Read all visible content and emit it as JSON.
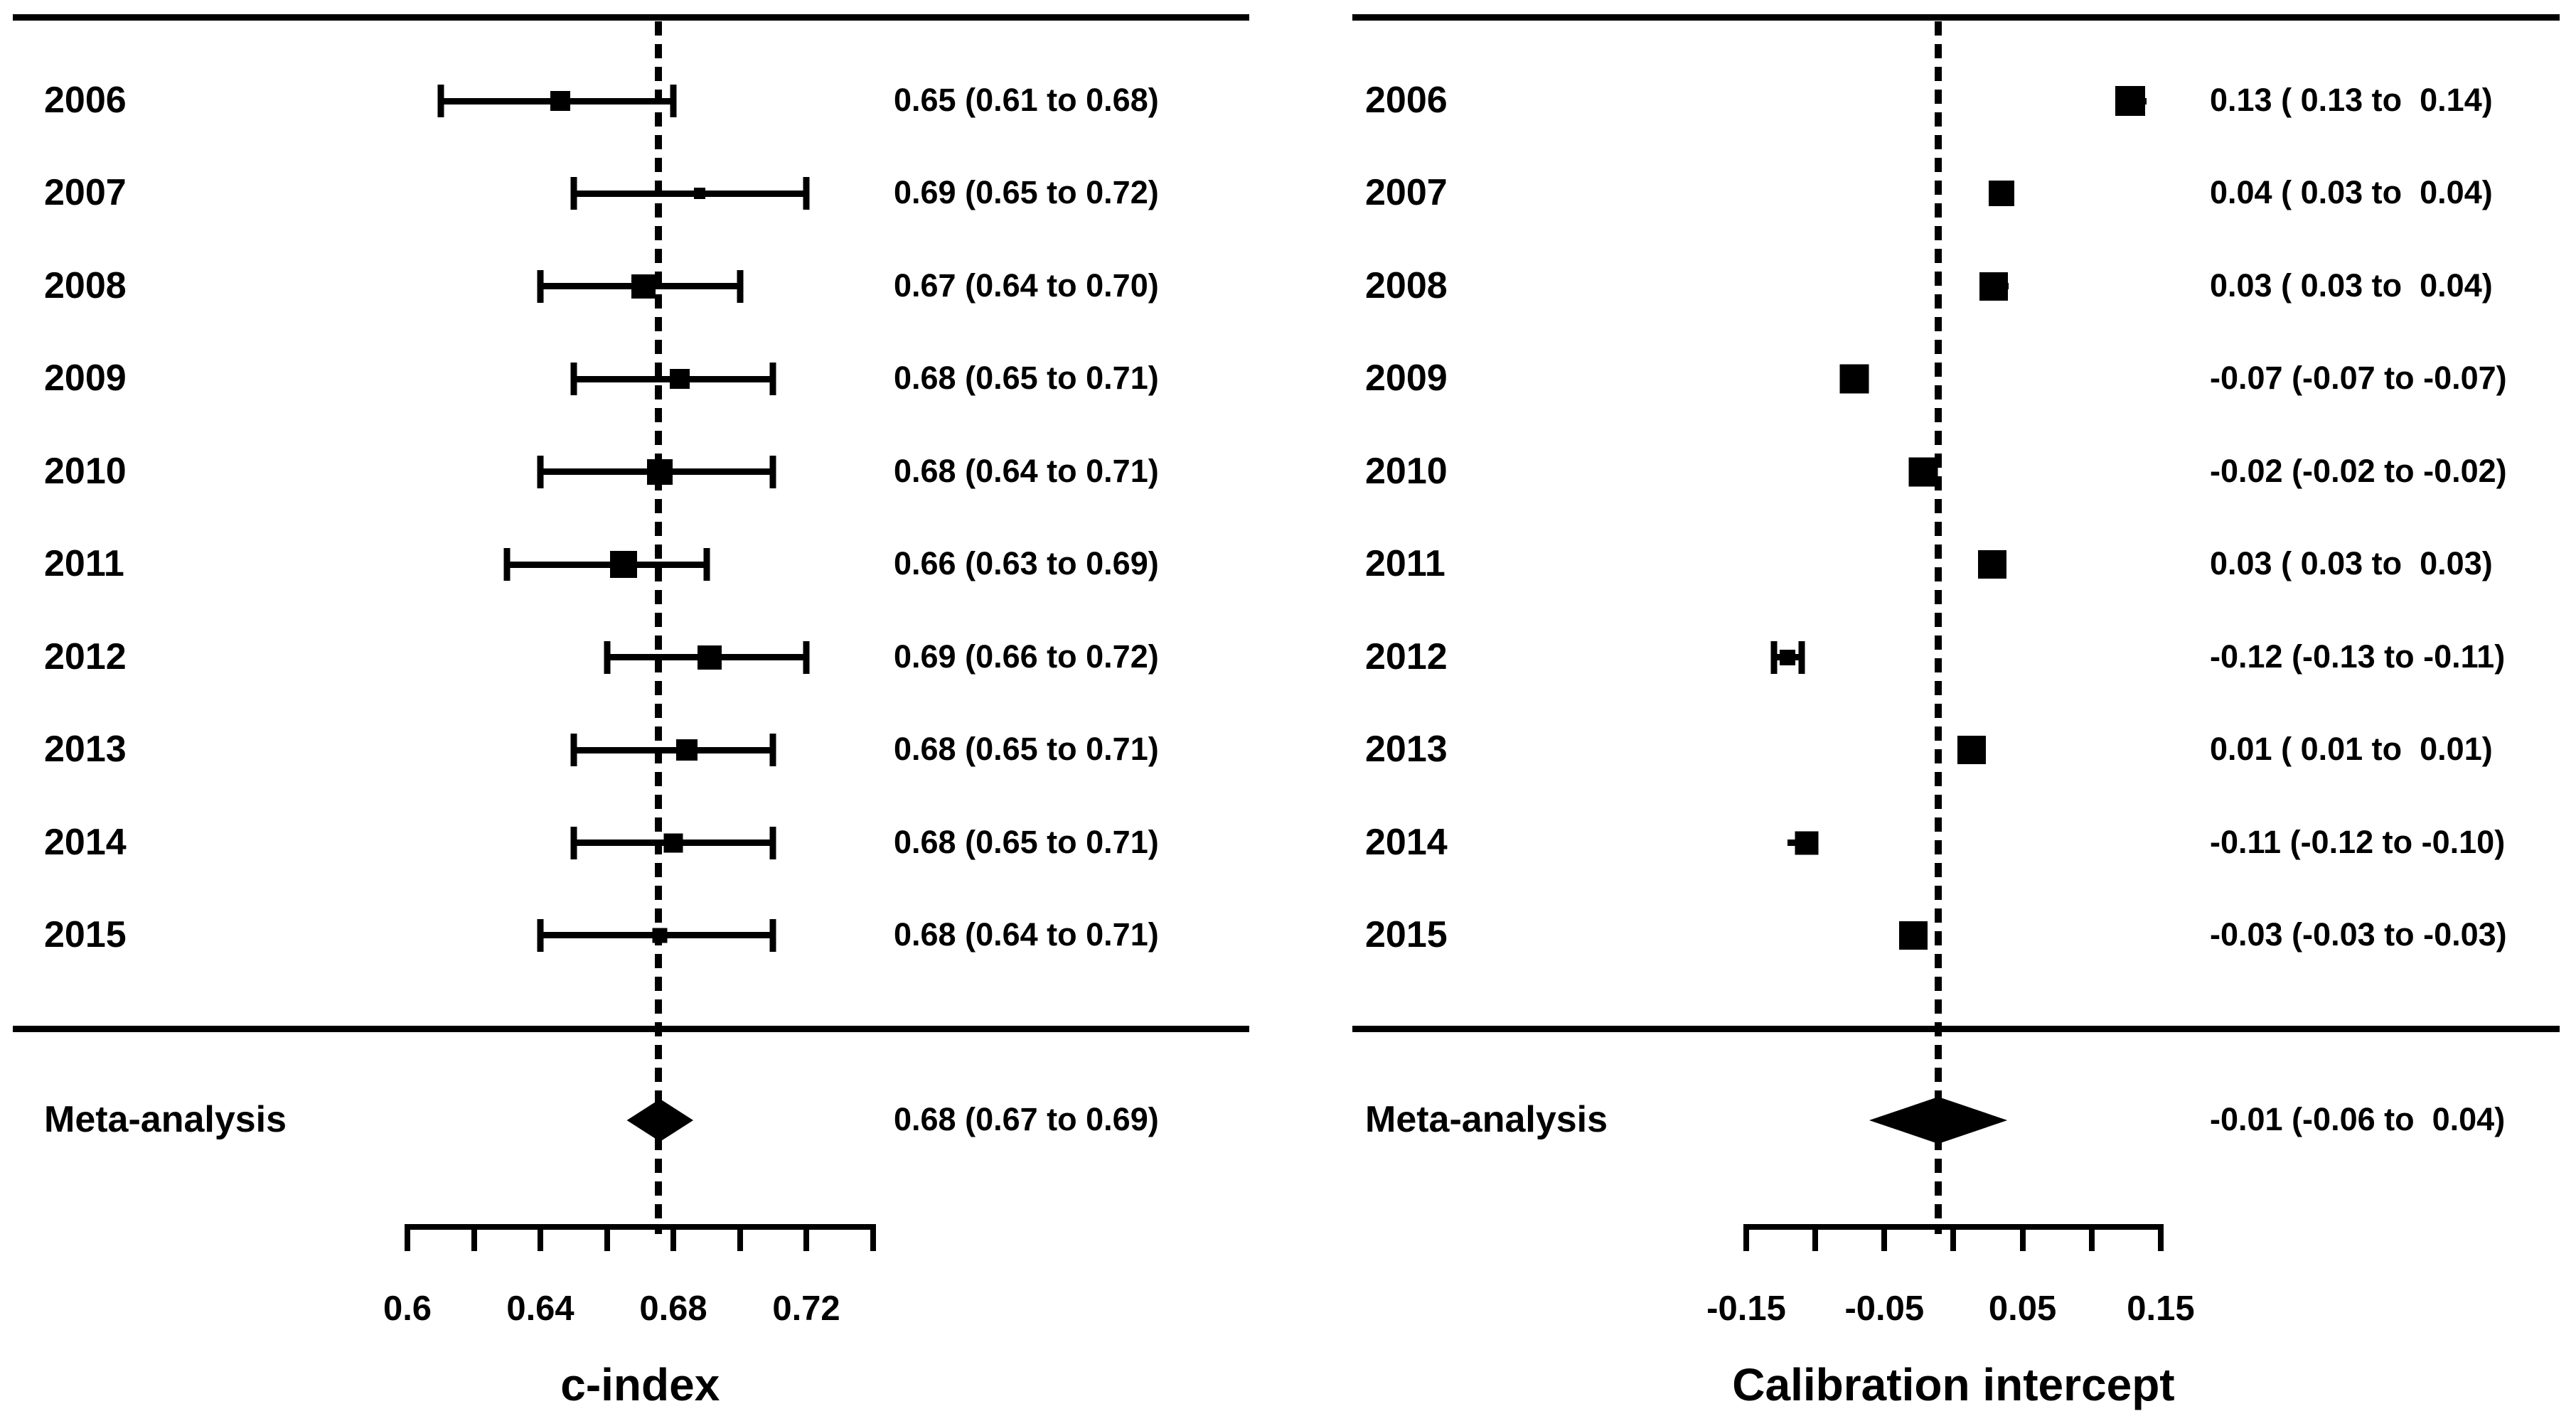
{
  "figure": {
    "background": "#ffffff",
    "ink_color": "#000000"
  },
  "chart_data": [
    {
      "type": "forest",
      "panel": "left",
      "xlabel": "c-index",
      "axis": {
        "min": 0.6,
        "max": 0.74,
        "tick_step": 0.02,
        "tick_labels": [
          {
            "text": "0.6",
            "value": 0.6
          },
          {
            "text": "0.64",
            "value": 0.64
          },
          {
            "text": "0.68",
            "value": 0.68
          },
          {
            "text": "0.72",
            "value": 0.72
          }
        ]
      },
      "reference_line": 0.6755,
      "meta": {
        "label": "Meta-analysis",
        "text": "0.68 (0.67 to 0.69)",
        "estimate": 0.68,
        "lo": 0.67,
        "hi": 0.69,
        "plot_center": 0.676
      },
      "rows": [
        {
          "label": "2006",
          "text": "0.65 (0.61 to 0.68)",
          "estimate": 0.65,
          "lo": 0.61,
          "hi": 0.68,
          "plot_value": 0.646,
          "marker_px": 28
        },
        {
          "label": "2007",
          "text": "0.69 (0.65 to 0.72)",
          "estimate": 0.69,
          "lo": 0.65,
          "hi": 0.72,
          "plot_value": 0.688,
          "marker_px": 16
        },
        {
          "label": "2008",
          "text": "0.67 (0.64 to 0.70)",
          "estimate": 0.67,
          "lo": 0.64,
          "hi": 0.7,
          "plot_value": 0.671,
          "marker_px": 34
        },
        {
          "label": "2009",
          "text": "0.68 (0.65 to 0.71)",
          "estimate": 0.68,
          "lo": 0.65,
          "hi": 0.71,
          "plot_value": 0.682,
          "marker_px": 28
        },
        {
          "label": "2010",
          "text": "0.68 (0.64 to 0.71)",
          "estimate": 0.68,
          "lo": 0.64,
          "hi": 0.71,
          "plot_value": 0.676,
          "marker_px": 36
        },
        {
          "label": "2011",
          "text": "0.66 (0.63 to 0.69)",
          "estimate": 0.66,
          "lo": 0.63,
          "hi": 0.69,
          "plot_value": 0.665,
          "marker_px": 38
        },
        {
          "label": "2012",
          "text": "0.69 (0.66 to 0.72)",
          "estimate": 0.69,
          "lo": 0.66,
          "hi": 0.72,
          "plot_value": 0.691,
          "marker_px": 34
        },
        {
          "label": "2013",
          "text": "0.68 (0.65 to 0.71)",
          "estimate": 0.68,
          "lo": 0.65,
          "hi": 0.71,
          "plot_value": 0.684,
          "marker_px": 30
        },
        {
          "label": "2014",
          "text": "0.68 (0.65 to 0.71)",
          "estimate": 0.68,
          "lo": 0.65,
          "hi": 0.71,
          "plot_value": 0.68,
          "marker_px": 27
        },
        {
          "label": "2015",
          "text": "0.68 (0.64 to 0.71)",
          "estimate": 0.68,
          "lo": 0.64,
          "hi": 0.71,
          "plot_value": 0.676,
          "marker_px": 21
        }
      ]
    },
    {
      "type": "forest",
      "panel": "right",
      "xlabel": "Calibration intercept",
      "axis": {
        "min": -0.15,
        "max": 0.15,
        "tick_step": 0.05,
        "tick_labels": [
          {
            "text": "-0.15",
            "value": -0.15
          },
          {
            "text": "-0.05",
            "value": -0.05
          },
          {
            "text": "0.05",
            "value": 0.05
          },
          {
            "text": "0.15",
            "value": 0.15
          }
        ]
      },
      "reference_line": -0.011,
      "meta": {
        "label": "Meta-analysis",
        "text": "-0.01 (-0.06 to  0.04)",
        "estimate": -0.01,
        "lo": -0.06,
        "hi": 0.04,
        "plot_center": -0.011
      },
      "rows": [
        {
          "label": "2006",
          "text": "0.13 ( 0.13 to  0.14)",
          "estimate": 0.13,
          "lo": 0.13,
          "hi": 0.14,
          "plot_value": 0.128,
          "marker_px": 42
        },
        {
          "label": "2007",
          "text": "0.04 ( 0.03 to  0.04)",
          "estimate": 0.04,
          "lo": 0.03,
          "hi": 0.04,
          "plot_value": 0.035,
          "marker_px": 36
        },
        {
          "label": "2008",
          "text": "0.03 ( 0.03 to  0.04)",
          "estimate": 0.03,
          "lo": 0.03,
          "hi": 0.04,
          "plot_value": 0.029,
          "marker_px": 40
        },
        {
          "label": "2009",
          "text": "-0.07 (-0.07 to -0.07)",
          "estimate": -0.07,
          "lo": -0.07,
          "hi": -0.07,
          "plot_value": -0.072,
          "marker_px": 41
        },
        {
          "label": "2010",
          "text": "-0.02 (-0.02 to -0.02)",
          "estimate": -0.02,
          "lo": -0.02,
          "hi": -0.02,
          "plot_value": -0.022,
          "marker_px": 41
        },
        {
          "label": "2011",
          "text": "0.03 ( 0.03 to  0.03)",
          "estimate": 0.03,
          "lo": 0.03,
          "hi": 0.03,
          "plot_value": 0.028,
          "marker_px": 40
        },
        {
          "label": "2012",
          "text": "-0.12 (-0.13 to -0.11)",
          "estimate": -0.12,
          "lo": -0.13,
          "hi": -0.11,
          "plot_value": -0.12,
          "marker_px": 22
        },
        {
          "label": "2013",
          "text": "0.01 ( 0.01 to  0.01)",
          "estimate": 0.01,
          "lo": 0.01,
          "hi": 0.01,
          "plot_value": 0.013,
          "marker_px": 40
        },
        {
          "label": "2014",
          "text": "-0.11 (-0.12 to -0.10)",
          "estimate": -0.11,
          "lo": -0.12,
          "hi": -0.1,
          "plot_value": -0.106,
          "marker_px": 33
        },
        {
          "label": "2015",
          "text": "-0.03 (-0.03 to -0.03)",
          "estimate": -0.03,
          "lo": -0.03,
          "hi": -0.03,
          "plot_value": -0.029,
          "marker_px": 40
        }
      ]
    }
  ]
}
